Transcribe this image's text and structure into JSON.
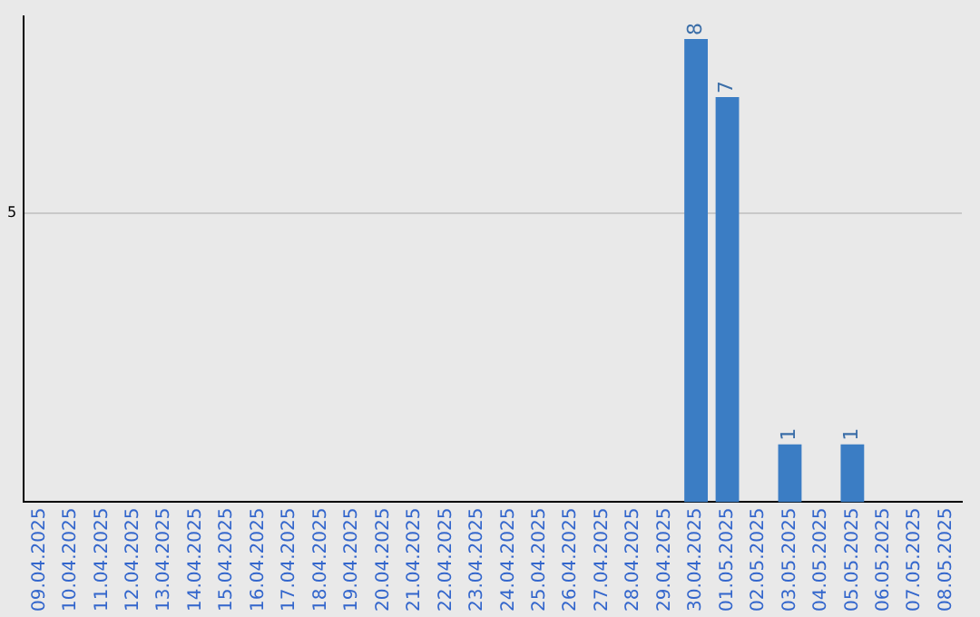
{
  "chart_data": {
    "type": "bar",
    "categories": [
      "09.04.2025",
      "10.04.2025",
      "11.04.2025",
      "12.04.2025",
      "13.04.2025",
      "14.04.2025",
      "15.04.2025",
      "16.04.2025",
      "17.04.2025",
      "18.04.2025",
      "19.04.2025",
      "20.04.2025",
      "21.04.2025",
      "22.04.2025",
      "23.04.2025",
      "24.04.2025",
      "25.04.2025",
      "26.04.2025",
      "27.04.2025",
      "28.04.2025",
      "29.04.2025",
      "30.04.2025",
      "01.05.2025",
      "02.05.2025",
      "03.05.2025",
      "04.05.2025",
      "05.05.2025",
      "06.05.2025",
      "07.05.2025",
      "08.05.2025"
    ],
    "values": [
      null,
      null,
      null,
      null,
      null,
      null,
      null,
      null,
      null,
      null,
      null,
      null,
      null,
      null,
      null,
      null,
      null,
      null,
      null,
      null,
      null,
      8,
      7,
      null,
      1,
      null,
      1,
      null,
      null,
      null
    ],
    "color": "#3b7dc4",
    "ylim": [
      0,
      8.4
    ],
    "yticks": [
      5
    ],
    "grid": "y",
    "data_labels": true,
    "legend": false
  }
}
